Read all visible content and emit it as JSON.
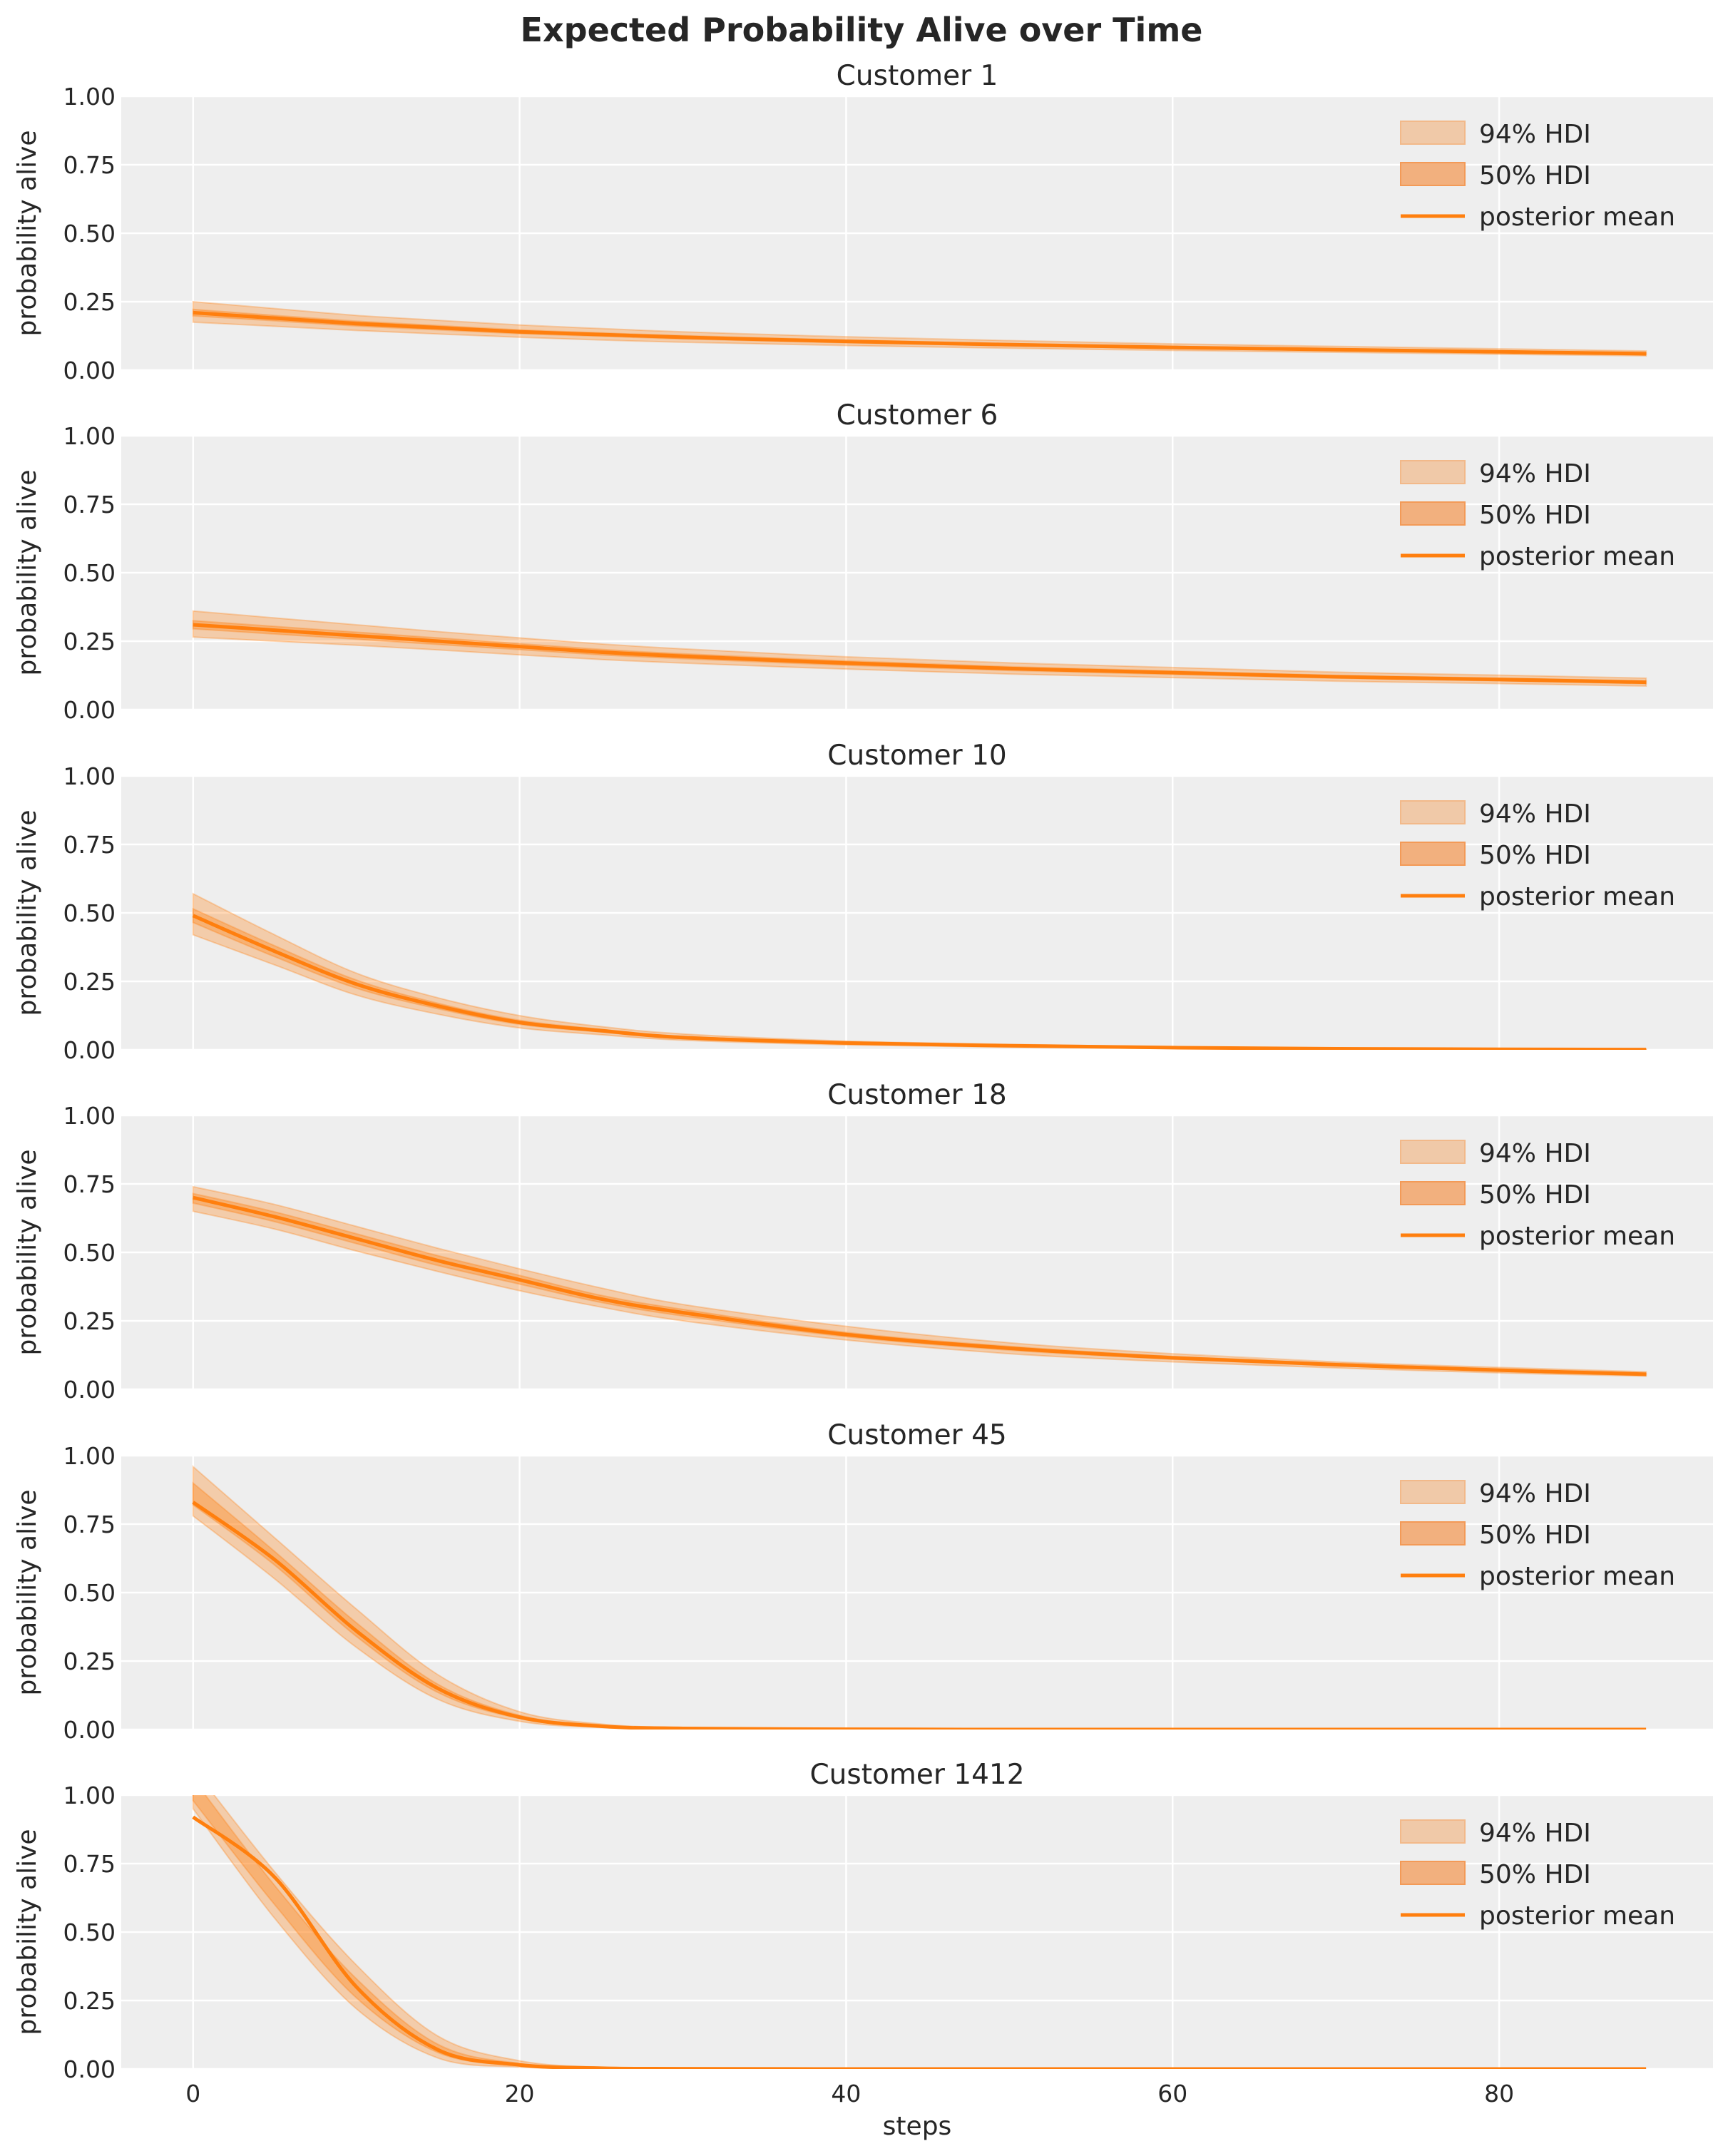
{
  "title": "Expected Probability Alive over Time",
  "chart_data": {
    "type": "line",
    "title": "Expected Probability Alive over Time",
    "xlabel": "steps",
    "ylabel": "probability alive",
    "xlim": [
      -4.4,
      93.1
    ],
    "ylim": [
      0,
      1
    ],
    "xticks": [
      "0",
      "20",
      "40",
      "60",
      "80"
    ],
    "yticks": [
      "0.00",
      "0.25",
      "0.50",
      "0.75",
      "1.00"
    ],
    "grid": true,
    "legend_placement": "upper right",
    "legend": [
      "94% HDI",
      "50% HDI",
      "posterior mean"
    ],
    "colors": {
      "mean": "#ff7f0e",
      "hdi": "#ff7f0e",
      "background": "#eeeeee",
      "grid": "#ffffff"
    },
    "x": [
      0,
      5,
      10,
      15,
      20,
      25,
      30,
      40,
      50,
      60,
      70,
      80,
      89
    ],
    "panels": [
      {
        "subtitle": "Customer 1",
        "mean": [
          0.21,
          0.19,
          0.17,
          0.155,
          0.14,
          0.13,
          0.12,
          0.105,
          0.093,
          0.083,
          0.075,
          0.067,
          0.06
        ],
        "hdi94_low": [
          0.175,
          0.16,
          0.145,
          0.132,
          0.12,
          0.11,
          0.102,
          0.09,
          0.08,
          0.072,
          0.065,
          0.058,
          0.052
        ],
        "hdi94_high": [
          0.25,
          0.225,
          0.2,
          0.182,
          0.165,
          0.152,
          0.14,
          0.122,
          0.108,
          0.096,
          0.087,
          0.078,
          0.07
        ],
        "hdi50_low": [
          0.198,
          0.18,
          0.161,
          0.147,
          0.133,
          0.124,
          0.114,
          0.1,
          0.089,
          0.079,
          0.072,
          0.064,
          0.057
        ],
        "hdi50_high": [
          0.222,
          0.2,
          0.179,
          0.163,
          0.147,
          0.136,
          0.126,
          0.11,
          0.097,
          0.087,
          0.078,
          0.07,
          0.063
        ]
      },
      {
        "subtitle": "Customer 6",
        "mean": [
          0.31,
          0.29,
          0.27,
          0.25,
          0.23,
          0.21,
          0.195,
          0.17,
          0.15,
          0.135,
          0.12,
          0.11,
          0.1
        ],
        "hdi94_low": [
          0.265,
          0.25,
          0.235,
          0.218,
          0.2,
          0.183,
          0.17,
          0.148,
          0.13,
          0.117,
          0.104,
          0.095,
          0.086
        ],
        "hdi94_high": [
          0.36,
          0.335,
          0.31,
          0.285,
          0.262,
          0.24,
          0.222,
          0.193,
          0.171,
          0.154,
          0.137,
          0.126,
          0.115
        ],
        "hdi50_low": [
          0.295,
          0.276,
          0.257,
          0.238,
          0.219,
          0.2,
          0.186,
          0.162,
          0.143,
          0.129,
          0.115,
          0.105,
          0.095
        ],
        "hdi50_high": [
          0.325,
          0.304,
          0.283,
          0.262,
          0.241,
          0.22,
          0.204,
          0.178,
          0.157,
          0.141,
          0.125,
          0.115,
          0.105
        ]
      },
      {
        "subtitle": "Customer 10",
        "mean": [
          0.49,
          0.36,
          0.24,
          0.16,
          0.1,
          0.07,
          0.045,
          0.025,
          0.015,
          0.008,
          0.004,
          0.002,
          0.001
        ],
        "hdi94_low": [
          0.42,
          0.31,
          0.2,
          0.13,
          0.08,
          0.055,
          0.035,
          0.018,
          0.01,
          0.005,
          0.002,
          0.001,
          0.0
        ],
        "hdi94_high": [
          0.57,
          0.42,
          0.28,
          0.19,
          0.125,
          0.085,
          0.058,
          0.032,
          0.02,
          0.011,
          0.006,
          0.003,
          0.002
        ],
        "hdi50_low": [
          0.465,
          0.34,
          0.225,
          0.15,
          0.093,
          0.065,
          0.041,
          0.022,
          0.013,
          0.007,
          0.003,
          0.0015,
          0.0005
        ],
        "hdi50_high": [
          0.515,
          0.38,
          0.255,
          0.17,
          0.108,
          0.075,
          0.049,
          0.028,
          0.017,
          0.009,
          0.005,
          0.0025,
          0.0015
        ]
      },
      {
        "subtitle": "Customer 18",
        "mean": [
          0.7,
          0.63,
          0.55,
          0.47,
          0.4,
          0.33,
          0.28,
          0.2,
          0.15,
          0.115,
          0.09,
          0.07,
          0.055
        ],
        "hdi94_low": [
          0.65,
          0.585,
          0.505,
          0.43,
          0.36,
          0.3,
          0.25,
          0.18,
          0.13,
          0.1,
          0.078,
          0.06,
          0.048
        ],
        "hdi94_high": [
          0.74,
          0.675,
          0.595,
          0.515,
          0.44,
          0.37,
          0.31,
          0.23,
          0.17,
          0.13,
          0.1,
          0.08,
          0.064
        ],
        "hdi50_low": [
          0.68,
          0.612,
          0.532,
          0.452,
          0.384,
          0.317,
          0.268,
          0.192,
          0.143,
          0.11,
          0.086,
          0.067,
          0.052
        ],
        "hdi50_high": [
          0.715,
          0.648,
          0.568,
          0.488,
          0.416,
          0.343,
          0.292,
          0.208,
          0.157,
          0.12,
          0.094,
          0.073,
          0.058
        ]
      },
      {
        "subtitle": "Customer 45",
        "mean": [
          0.83,
          0.62,
          0.36,
          0.15,
          0.045,
          0.012,
          0.004,
          0.001,
          0,
          0,
          0,
          0,
          0
        ],
        "hdi94_low": [
          0.78,
          0.55,
          0.3,
          0.11,
          0.03,
          0.007,
          0.002,
          0,
          0,
          0,
          0,
          0,
          0
        ],
        "hdi94_high": [
          0.96,
          0.7,
          0.44,
          0.2,
          0.065,
          0.02,
          0.007,
          0.002,
          0,
          0,
          0,
          0,
          0
        ],
        "hdi50_low": [
          0.82,
          0.6,
          0.34,
          0.135,
          0.04,
          0.01,
          0.003,
          0.0005,
          0,
          0,
          0,
          0,
          0
        ],
        "hdi50_high": [
          0.9,
          0.65,
          0.39,
          0.165,
          0.052,
          0.014,
          0.005,
          0.0015,
          0,
          0,
          0,
          0,
          0
        ]
      },
      {
        "subtitle": "Customer 1412",
        "mean": [
          0.92,
          0.7,
          0.3,
          0.07,
          0.015,
          0.003,
          0.001,
          0,
          0,
          0,
          0,
          0,
          0
        ],
        "hdi94_low": [
          0.95,
          0.55,
          0.22,
          0.04,
          0.007,
          0.001,
          0,
          0,
          0,
          0,
          0,
          0,
          0
        ],
        "hdi94_high": [
          1.1,
          0.72,
          0.38,
          0.12,
          0.03,
          0.006,
          0.002,
          0,
          0,
          0,
          0,
          0,
          0
        ],
        "hdi50_low": [
          0.98,
          0.6,
          0.26,
          0.06,
          0.012,
          0.002,
          0.001,
          0,
          0,
          0,
          0,
          0,
          0
        ],
        "hdi50_high": [
          1.06,
          0.67,
          0.33,
          0.09,
          0.02,
          0.004,
          0.0015,
          0,
          0,
          0,
          0,
          0,
          0
        ]
      }
    ]
  }
}
